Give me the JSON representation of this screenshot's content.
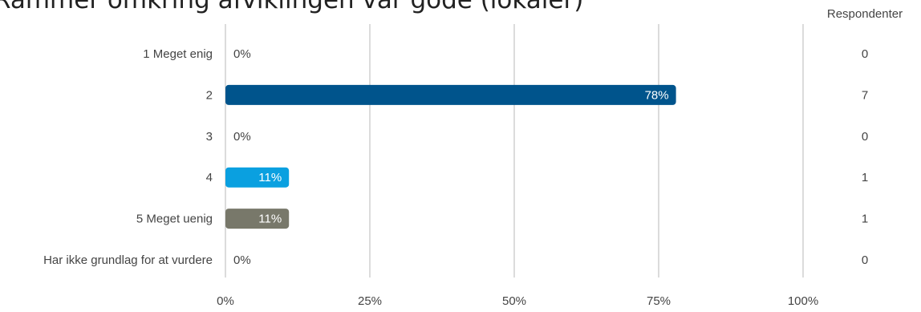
{
  "chart_data": {
    "type": "bar",
    "orientation": "horizontal",
    "title": "Rammer omkring afviklingen var gode (lokaler)",
    "categories": [
      "1 Meget enig",
      "2",
      "3",
      "4",
      "5 Meget uenig",
      "Har ikke grundlag for at vurdere"
    ],
    "values": [
      0,
      78,
      0,
      11,
      11,
      0
    ],
    "value_labels": [
      "0%",
      "78%",
      "0%",
      "11%",
      "11%",
      "0%"
    ],
    "bar_colors": [
      "#00548c",
      "#00548c",
      "#00548c",
      "#0aa0e0",
      "#78786a",
      "#00548c"
    ],
    "respondents_header": "Respondenter",
    "respondents": [
      "0",
      "7",
      "0",
      "1",
      "1",
      "0"
    ],
    "x_ticks": [
      0,
      25,
      50,
      75,
      100
    ],
    "x_tick_labels": [
      "0%",
      "25%",
      "50%",
      "75%",
      "100%"
    ],
    "xlim": [
      0,
      100
    ],
    "grid": true,
    "legend": "none"
  }
}
